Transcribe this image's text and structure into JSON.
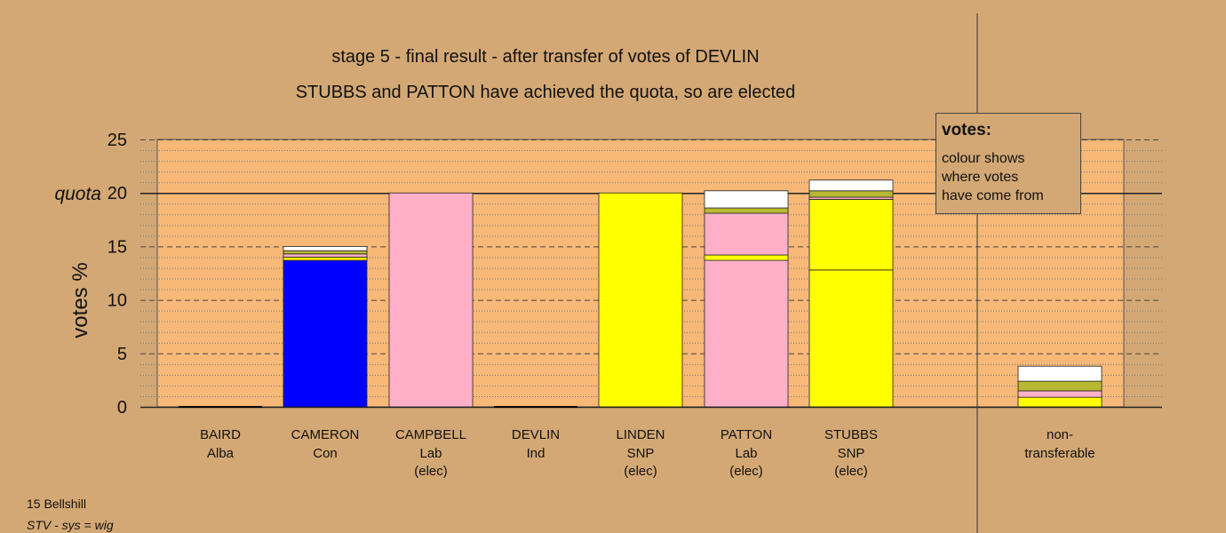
{
  "title_line1": "stage 5 - final result - after transfer of votes of DEVLIN",
  "title_line2": "STUBBS and PATTON have achieved the quota, so are elected",
  "legend": {
    "heading": "votes:",
    "lines": [
      "colour shows",
      "where votes",
      "have come from"
    ]
  },
  "footer": {
    "line1": "15 Bellshill",
    "line2": "STV - sys = wig"
  },
  "colors": {
    "background": "#d4a874",
    "plot_area": "#f7b878",
    "Con": "#0000ff",
    "Lab": "#ffb0c8",
    "SNP": "#ffff00",
    "Ind": "#ffffff",
    "Alba": "#b8b832",
    "Other": "#cc6f4e"
  },
  "chart_data": {
    "type": "bar",
    "stacked": true,
    "ylabel": "votes %",
    "ylim": [
      0,
      25
    ],
    "yticks": [
      0,
      5,
      10,
      15,
      20,
      25
    ],
    "quota": 20,
    "quota_label": "quota",
    "grid": "minor-dotted-major-dashed",
    "categories": [
      {
        "name": "BAIRD",
        "party": "Alba",
        "status": ""
      },
      {
        "name": "CAMERON",
        "party": "Con",
        "status": ""
      },
      {
        "name": "CAMPBELL",
        "party": "Lab",
        "status": "(elec)"
      },
      {
        "name": "DEVLIN",
        "party": "Ind",
        "status": ""
      },
      {
        "name": "LINDEN",
        "party": "SNP",
        "status": "(elec)"
      },
      {
        "name": "PATTON",
        "party": "Lab",
        "status": "(elec)"
      },
      {
        "name": "STUBBS",
        "party": "SNP",
        "status": "(elec)"
      },
      {
        "name": "non-",
        "party": "transferable",
        "status": ""
      }
    ],
    "stacks": [
      [],
      [
        {
          "source": "Con",
          "value": 13.7
        },
        {
          "source": "SNP",
          "value": 0.3
        },
        {
          "source": "Lab",
          "value": 0.3
        },
        {
          "source": "Alba",
          "value": 0.3
        },
        {
          "source": "Ind",
          "value": 0.4
        }
      ],
      [
        {
          "source": "Lab",
          "value": 20.0
        }
      ],
      [],
      [
        {
          "source": "SNP",
          "value": 20.0
        }
      ],
      [
        {
          "source": "Lab",
          "value": 13.7
        },
        {
          "source": "SNP",
          "value": 0.5
        },
        {
          "source": "Lab",
          "value": 3.9
        },
        {
          "source": "Alba",
          "value": 0.5
        },
        {
          "source": "Ind",
          "value": 1.6
        }
      ],
      [
        {
          "source": "SNP",
          "value": 12.8
        },
        {
          "source": "SNP",
          "value": 6.6
        },
        {
          "source": "Lab",
          "value": 0.2
        },
        {
          "source": "Alba",
          "value": 0.6
        },
        {
          "source": "Ind",
          "value": 1.0
        }
      ],
      [
        {
          "source": "SNP",
          "value": 0.9
        },
        {
          "source": "Lab",
          "value": 0.6
        },
        {
          "source": "Alba",
          "value": 0.9
        },
        {
          "source": "Ind",
          "value": 1.4
        }
      ]
    ]
  }
}
